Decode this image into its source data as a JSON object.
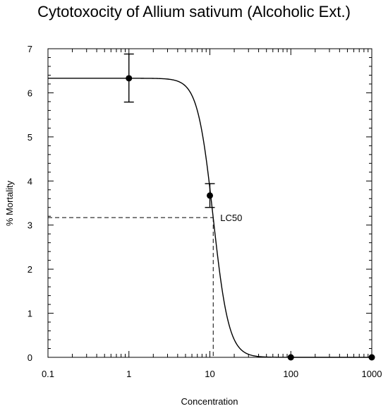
{
  "chart_data": {
    "type": "scatter",
    "title": "Cytotoxocity of Allium sativum (Alcoholic Ext.)",
    "xlabel": "Concentration",
    "ylabel": "% Mortality",
    "xscale": "log",
    "xlim": [
      0.1,
      1000
    ],
    "ylim": [
      0,
      7
    ],
    "xticks": [
      "0.1",
      "1",
      "10",
      "100",
      "1000"
    ],
    "yticks": [
      "0",
      "1",
      "2",
      "3",
      "4",
      "5",
      "6",
      "7"
    ],
    "grid": false,
    "points": [
      {
        "x": 1,
        "y": 6.33,
        "err_low": 5.79,
        "err_high": 6.88
      },
      {
        "x": 10,
        "y": 3.67,
        "err_low": 3.4,
        "err_high": 3.94
      },
      {
        "x": 100,
        "y": 0
      },
      {
        "x": 1000,
        "y": 0
      }
    ],
    "fit_curve": {
      "top": 6.33,
      "bottom": 0,
      "ec50": 11,
      "hill": 4.5
    },
    "lc50": {
      "label": "LC50",
      "x": 11,
      "y": 3.17
    }
  }
}
